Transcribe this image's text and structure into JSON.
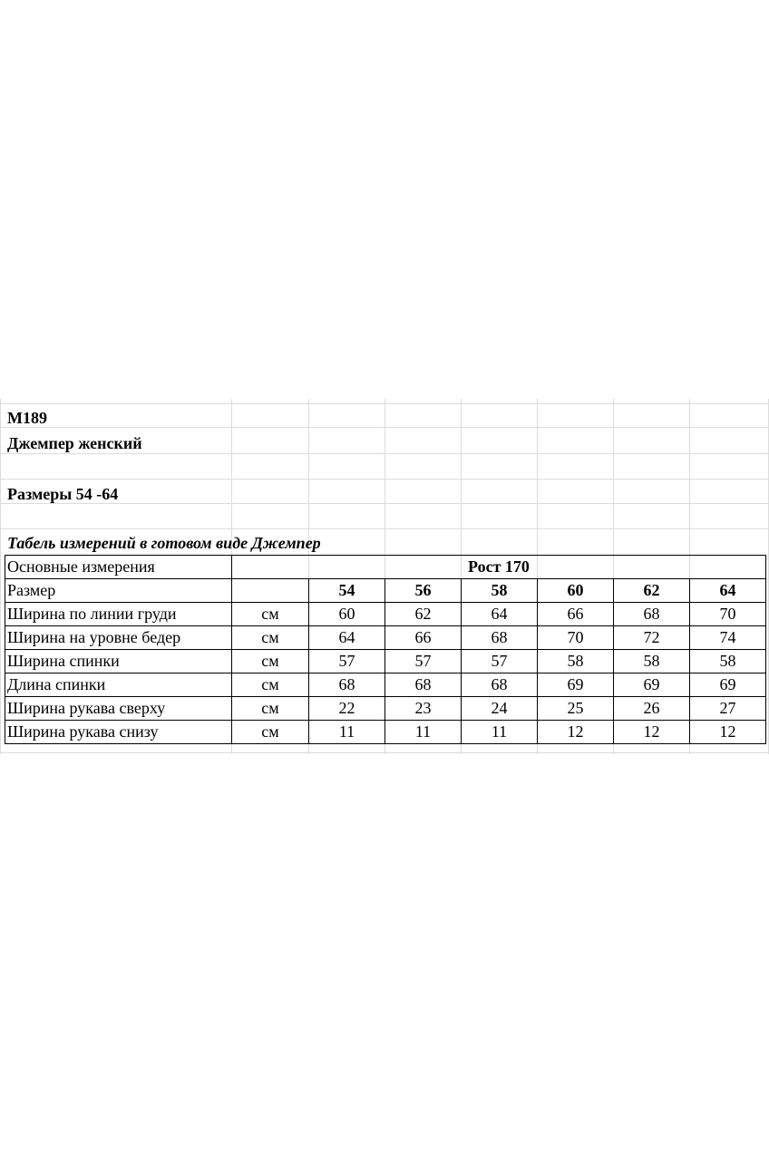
{
  "header": {
    "model": "М189",
    "product": "Джемпер женский",
    "sizes": "Размеры 54 -64",
    "table_title": "Табель измерений в готовом виде Джемпер"
  },
  "table": {
    "main_label": "Основные измерения",
    "height_label": "Рост 170",
    "size_label": "Размер",
    "sizes": [
      "54",
      "56",
      "58",
      "60",
      "62",
      "64"
    ],
    "rows": [
      {
        "name": "Ширина по линии груди",
        "unit": "см",
        "values": [
          "60",
          "62",
          "64",
          "66",
          "68",
          "70"
        ]
      },
      {
        "name": "Ширина на уровне бедер",
        "unit": "см",
        "values": [
          "64",
          "66",
          "68",
          "70",
          "72",
          "74"
        ]
      },
      {
        "name": "Ширина спинки",
        "unit": "см",
        "values": [
          "57",
          "57",
          "57",
          "58",
          "58",
          "58"
        ]
      },
      {
        "name": "Длина спинки",
        "unit": "см",
        "values": [
          "68",
          "68",
          "68",
          "69",
          "69",
          "69"
        ]
      },
      {
        "name": "Ширина рукава сверху",
        "unit": "см",
        "values": [
          "22",
          "23",
          "24",
          "25",
          "26",
          "27"
        ]
      },
      {
        "name": "Ширина рукава снизу",
        "unit": "см",
        "values": [
          "11",
          "11",
          "11",
          "12",
          "12",
          "12"
        ]
      }
    ]
  }
}
